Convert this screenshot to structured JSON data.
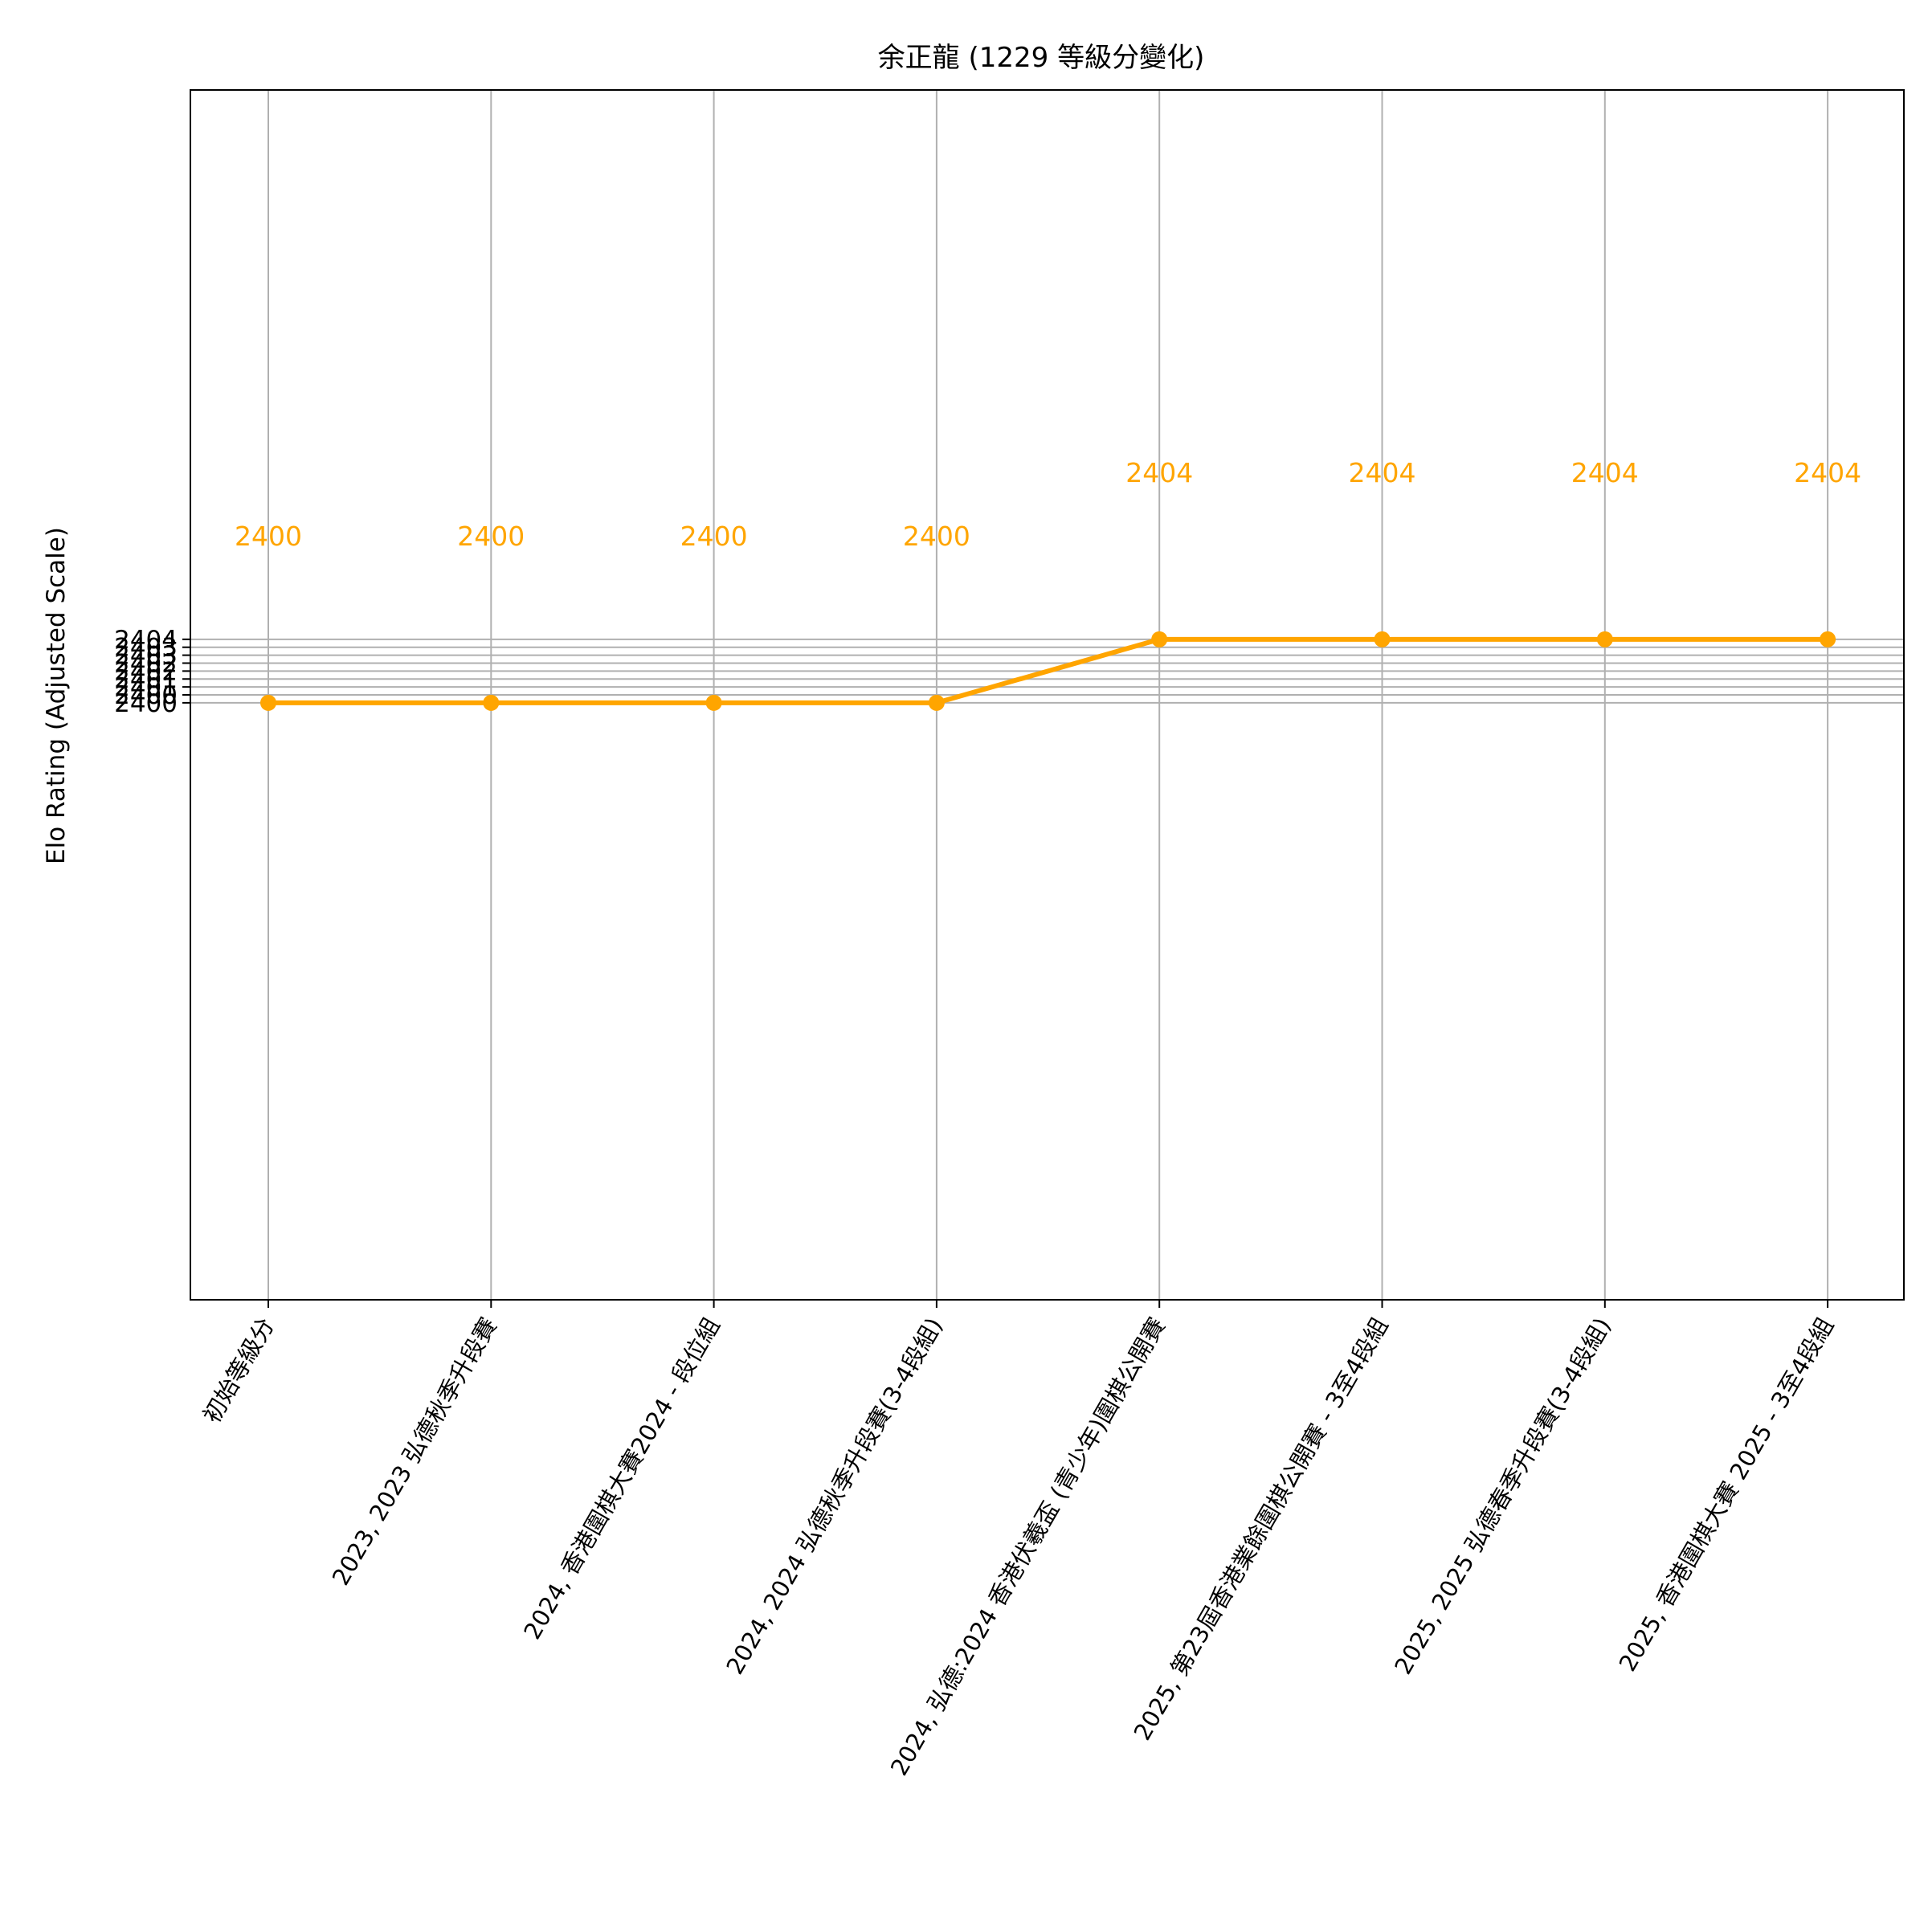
{
  "chart_data": {
    "type": "line",
    "title": "余正龍 (1229 等級分變化)",
    "xlabel": "",
    "ylabel": "Elo Rating (Adjusted Scale)",
    "categories": [
      "初始等級分",
      "2023, 2023 弘德秋季升段賽",
      "2024, 香港圍棋大賽2024 - 段位組",
      "2024, 2024 弘德秋季升段賽(3-4段組)",
      "2024, 弘德:2024 香港伏羲盃 (青少年)圍棋公開賽",
      "2025, 第23屆香港業餘圍棋公開賽 - 3至4段組",
      "2025, 2025 弘德春季升段賽(3-4段組)",
      "2025, 香港圍棋大賽 2025 - 3至4段組"
    ],
    "series": [
      {
        "values": [
          2400,
          2400,
          2400,
          2400,
          2404,
          2404,
          2404,
          2404
        ]
      }
    ],
    "data_labels": [
      "2400",
      "2400",
      "2400",
      "2400",
      "2404",
      "2404",
      "2404",
      "2404"
    ],
    "y_ticks": [
      {
        "value": 2400.0,
        "label": "2400"
      },
      {
        "value": 2400.5,
        "label": "2400"
      },
      {
        "value": 2401.0,
        "label": "2401"
      },
      {
        "value": 2401.5,
        "label": "2401"
      },
      {
        "value": 2402.0,
        "label": "2402"
      },
      {
        "value": 2402.5,
        "label": "2402"
      },
      {
        "value": 2403.0,
        "label": "2403"
      },
      {
        "value": 2403.5,
        "label": "2403"
      },
      {
        "value": 2404.0,
        "label": "2404"
      }
    ],
    "ylim": [
      2362.4,
      2438.6
    ],
    "grid": true,
    "legend": "none",
    "color": "#FFA500"
  }
}
